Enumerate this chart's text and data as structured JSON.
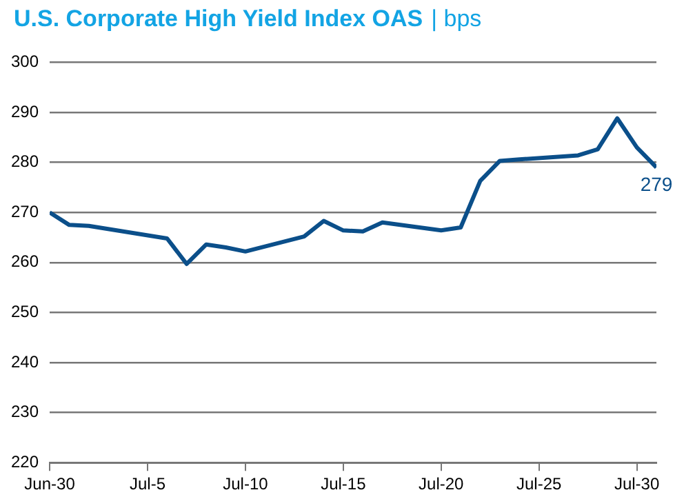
{
  "chart_data": {
    "type": "line",
    "title": "U.S. Corporate High Yield Index OAS",
    "subtitle": "| bps",
    "x": [
      "--06-30",
      "--07-01",
      "--07-02",
      "--07-06",
      "--07-07",
      "--07-08",
      "--07-09",
      "--07-10",
      "--07-13",
      "--07-14",
      "--07-15",
      "--07-16",
      "--07-17",
      "--07-20",
      "--07-21",
      "--07-22",
      "--07-23",
      "--07-24",
      "--07-27",
      "--07-28",
      "--07-29",
      "--07-30",
      "--07-31"
    ],
    "series": [
      {
        "color": "#0b4f8a",
        "values": [
          270,
          267.5,
          267.3,
          264.8,
          259.7,
          263.6,
          263,
          262.2,
          265.2,
          268.3,
          266.4,
          266.2,
          268,
          266.4,
          267,
          276.3,
          280.3,
          280.6,
          281.4,
          282.6,
          288.8,
          283,
          279
        ]
      }
    ],
    "xlim": [
      "--06-30",
      "--07-31"
    ],
    "xticks": [
      {
        "value": "--06-30",
        "label": "Jun-30"
      },
      {
        "value": "--07-05",
        "label": "Jul-5"
      },
      {
        "value": "--07-10",
        "label": "Jul-10"
      },
      {
        "value": "--07-15",
        "label": "Jul-15"
      },
      {
        "value": "--07-20",
        "label": "Jul-20"
      },
      {
        "value": "--07-25",
        "label": "Jul-25"
      },
      {
        "value": "--07-30",
        "label": "Jul-30"
      }
    ],
    "ylim": [
      220,
      300
    ],
    "yticks": [
      220,
      230,
      240,
      250,
      260,
      270,
      280,
      290,
      300
    ],
    "grid": "y",
    "legend": false,
    "marker": "none",
    "line_style": "solid",
    "annotations": [
      {
        "text": "279",
        "x": "--07-31",
        "y": 279
      }
    ]
  }
}
